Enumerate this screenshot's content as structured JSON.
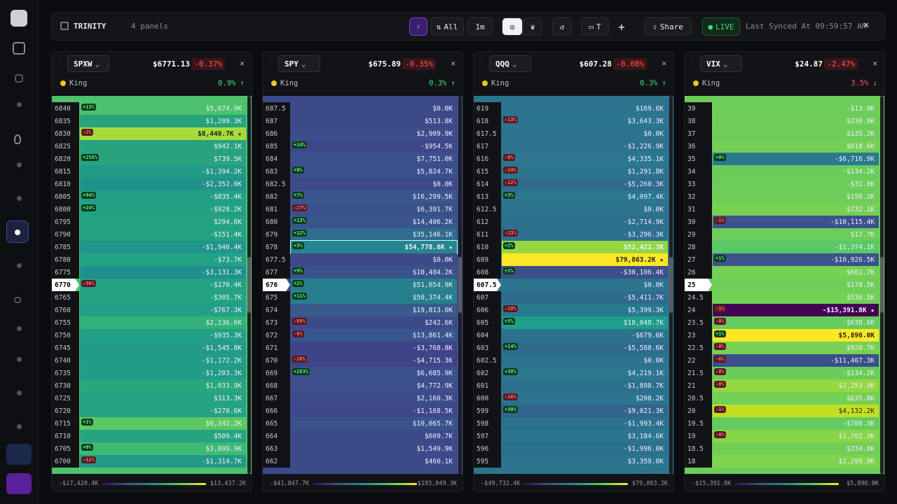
{
  "header": {
    "brand": "TRINITY",
    "panel_count": "4 panels",
    "filter": "All",
    "interval": "1m",
    "t_button": "T",
    "share": "Share",
    "live": "LIVE",
    "last_synced": "Last Synced At 09:59:57 AM"
  },
  "panels": [
    {
      "ticker": "SPXW",
      "price": "$6771.13",
      "change": "-0.37%",
      "king": "King",
      "king_change": "0.9% ↑",
      "king_color": "#3ddc84",
      "footer_min": "-$17,420.4K",
      "footer_max": "$13,437.2K",
      "rows": [
        {
          "strike": "6840",
          "badge": "+13%",
          "value": "$5,674.9K",
          "color": "#4cc26c"
        },
        {
          "strike": "6835",
          "value": "$1,209.3K",
          "color": "#27a37e"
        },
        {
          "strike": "6830",
          "badge": "-2%",
          "value": "$8,440.7K ★",
          "color": "#a6dc3a",
          "highlight": true
        },
        {
          "strike": "6825",
          "value": "$942.1K",
          "color": "#27a37e"
        },
        {
          "strike": "6820",
          "badge": "+258%",
          "value": "$739.5K",
          "color": "#27a37e"
        },
        {
          "strike": "6815",
          "value": "-$1,394.2K",
          "color": "#219a86"
        },
        {
          "strike": "6810",
          "value": "-$2,352.0K",
          "color": "#20928b"
        },
        {
          "strike": "6805",
          "badge": "+94%",
          "value": "-$835.4K",
          "color": "#22a085"
        },
        {
          "strike": "6800",
          "badge": "+24%",
          "value": "-$928.2K",
          "color": "#22a085"
        },
        {
          "strike": "6795",
          "value": "$294.6K",
          "color": "#25a381"
        },
        {
          "strike": "6790",
          "value": "-$151.4K",
          "color": "#23a283"
        },
        {
          "strike": "6785",
          "value": "-$1,940.4K",
          "color": "#20968a"
        },
        {
          "strike": "6780",
          "value": "-$73.7K",
          "color": "#23a283"
        },
        {
          "strike": "6775",
          "value": "-$3,131.3K",
          "color": "#20908c"
        },
        {
          "strike": "6770",
          "badge": "-56%",
          "value": "-$170.4K",
          "color": "#23a283",
          "current": true
        },
        {
          "strike": "6765",
          "value": "-$305.7K",
          "color": "#23a283"
        },
        {
          "strike": "6760",
          "value": "-$767.3K",
          "color": "#22a085"
        },
        {
          "strike": "6755",
          "value": "$2,136.6K",
          "color": "#32b179"
        },
        {
          "strike": "6750",
          "value": "-$935.3K",
          "color": "#22a085"
        },
        {
          "strike": "6745",
          "value": "-$1,545.8K",
          "color": "#219a86"
        },
        {
          "strike": "6740",
          "value": "-$1,172.2K",
          "color": "#219c86"
        },
        {
          "strike": "6735",
          "value": "-$1,203.3K",
          "color": "#219c86"
        },
        {
          "strike": "6730",
          "value": "$1,033.9K",
          "color": "#28a77d"
        },
        {
          "strike": "6725",
          "value": "$313.3K",
          "color": "#25a381"
        },
        {
          "strike": "6720",
          "value": "-$270.6K",
          "color": "#23a283"
        },
        {
          "strike": "6715",
          "badge": "+1%",
          "value": "$6,342.2K",
          "color": "#5cc863"
        },
        {
          "strike": "6710",
          "value": "$509.4K",
          "color": "#26a480"
        },
        {
          "strike": "6705",
          "badge": "+0%",
          "value": "$3,899.9K",
          "color": "#3dba74"
        },
        {
          "strike": "6700",
          "badge": "-12%",
          "value": "-$1,314.7K",
          "color": "#219a86"
        }
      ]
    },
    {
      "ticker": "SPY",
      "price": "$675.89",
      "change": "-0.35%",
      "king": "King",
      "king_change": "0.3% ↑",
      "king_color": "#3ddc84",
      "footer_min": "-$41,847.7K",
      "footer_max": "$193,049.3K",
      "rows": [
        {
          "strike": "687.5",
          "value": "$0.0K",
          "color": "#3d4a8a"
        },
        {
          "strike": "687",
          "value": "$513.8K",
          "color": "#3d4a8a"
        },
        {
          "strike": "686",
          "value": "$2,909.9K",
          "color": "#3c4d8b"
        },
        {
          "strike": "685",
          "badge": "+14%",
          "value": "-$954.5K",
          "color": "#3e4789"
        },
        {
          "strike": "684",
          "value": "$7,751.0K",
          "color": "#3b518b"
        },
        {
          "strike": "683",
          "badge": "+0%",
          "value": "$5,824.7K",
          "color": "#3b508b"
        },
        {
          "strike": "682.5",
          "value": "$0.0K",
          "color": "#3d4a8a"
        },
        {
          "strike": "682",
          "badge": "+7%",
          "value": "$16,299.5K",
          "color": "#39578c"
        },
        {
          "strike": "681",
          "badge": "-27%",
          "value": "$6,391.7K",
          "color": "#3b508b"
        },
        {
          "strike": "680",
          "badge": "+13%",
          "value": "$14,406.2K",
          "color": "#39568c"
        },
        {
          "strike": "679",
          "badge": "+12%",
          "value": "$35,146.1K",
          "color": "#2f6c8e"
        },
        {
          "strike": "678",
          "badge": "+3%",
          "value": "$54,778.6K ★",
          "color": "#25848e",
          "highlight": true,
          "outline": true
        },
        {
          "strike": "677.5",
          "value": "$0.0K",
          "color": "#3d4a8a"
        },
        {
          "strike": "677",
          "badge": "+9%",
          "value": "$10,404.2K",
          "color": "#3a538b"
        },
        {
          "strike": "676",
          "badge": "+2%",
          "value": "$51,054.9K",
          "color": "#27808e",
          "current": true
        },
        {
          "strike": "675",
          "badge": "+11%",
          "value": "$50,374.4K",
          "color": "#277f8e"
        },
        {
          "strike": "674",
          "value": "$19,813.0K",
          "color": "#385b8c"
        },
        {
          "strike": "673",
          "badge": "-89%",
          "value": "$242.6K",
          "color": "#3d4a8a"
        },
        {
          "strike": "672",
          "badge": "-6%",
          "value": "$13,861.4K",
          "color": "#39568c"
        },
        {
          "strike": "671",
          "value": "-$3,768.8K",
          "color": "#3f4488"
        },
        {
          "strike": "670",
          "badge": "-26%",
          "value": "-$4,715.3K",
          "color": "#3f4387"
        },
        {
          "strike": "669",
          "badge": "+283%",
          "value": "$6,685.9K",
          "color": "#3b508b"
        },
        {
          "strike": "668",
          "value": "$4,772.9K",
          "color": "#3c4e8b"
        },
        {
          "strike": "667",
          "value": "$2,160.3K",
          "color": "#3c4c8a"
        },
        {
          "strike": "666",
          "value": "-$1,168.5K",
          "color": "#3e4789"
        },
        {
          "strike": "665",
          "value": "$10,065.7K",
          "color": "#3a538b"
        },
        {
          "strike": "664",
          "value": "$609.7K",
          "color": "#3d4a8a"
        },
        {
          "strike": "663",
          "value": "$1,549.9K",
          "color": "#3d4b8a"
        },
        {
          "strike": "662",
          "value": "$460.1K",
          "color": "#3d4a8a"
        }
      ]
    },
    {
      "ticker": "QQQ",
      "price": "$607.28",
      "change": "-0.08%",
      "king": "King",
      "king_change": "0.3% ↑",
      "king_color": "#3ddc84",
      "footer_min": "-$49,732.4K",
      "footer_max": "$79,863.2K",
      "rows": [
        {
          "strike": "619",
          "value": "$169.6K",
          "color": "#2c738e"
        },
        {
          "strike": "618",
          "badge": "-13%",
          "value": "$3,643.3K",
          "color": "#2b768e"
        },
        {
          "strike": "617.5",
          "value": "$0.0K",
          "color": "#2c738e"
        },
        {
          "strike": "617",
          "value": "-$1,226.9K",
          "color": "#2d718e"
        },
        {
          "strike": "616",
          "badge": "-8%",
          "value": "$4,335.1K",
          "color": "#2a778e"
        },
        {
          "strike": "615",
          "badge": "-24%",
          "value": "$1,291.8K",
          "color": "#2c748e"
        },
        {
          "strike": "614",
          "badge": "-12%",
          "value": "-$5,260.3K",
          "color": "#2e6b8e"
        },
        {
          "strike": "613",
          "badge": "+3%",
          "value": "$4,097.4K",
          "color": "#2a778e"
        },
        {
          "strike": "612.5",
          "value": "$0.0K",
          "color": "#2c738e"
        },
        {
          "strike": "612",
          "value": "-$2,714.9K",
          "color": "#2d6f8e"
        },
        {
          "strike": "611",
          "badge": "-33%",
          "value": "-$3,296.3K",
          "color": "#2e6e8e"
        },
        {
          "strike": "610",
          "badge": "+2%",
          "value": "$52,422.3K",
          "color": "#94d741",
          "highlight": true
        },
        {
          "strike": "609",
          "value": "$79,863.2K ★",
          "color": "#fde725",
          "highlight": true
        },
        {
          "strike": "608",
          "badge": "+1%",
          "value": "-$30,106.4K",
          "color": "#3c4f8a"
        },
        {
          "strike": "607.5",
          "value": "$0.0K",
          "color": "#2c738e",
          "current": true
        },
        {
          "strike": "607",
          "value": "-$5,411.7K",
          "color": "#2e6b8e"
        },
        {
          "strike": "606",
          "badge": "-28%",
          "value": "$5,399.3K",
          "color": "#29798e"
        },
        {
          "strike": "605",
          "badge": "+5%",
          "value": "$18,048.7K",
          "color": "#1f9e89"
        },
        {
          "strike": "604",
          "value": "-$679.6K",
          "color": "#2c728e"
        },
        {
          "strike": "603",
          "badge": "+14%",
          "value": "-$5,588.6K",
          "color": "#2e6b8e"
        },
        {
          "strike": "602.5",
          "value": "$0.0K",
          "color": "#2c738e"
        },
        {
          "strike": "602",
          "badge": "+38%",
          "value": "$4,219.1K",
          "color": "#2a778e"
        },
        {
          "strike": "601",
          "value": "-$1,898.7K",
          "color": "#2d708e"
        },
        {
          "strike": "600",
          "badge": "-16%",
          "value": "$208.2K",
          "color": "#2c738e"
        },
        {
          "strike": "599",
          "badge": "+30%",
          "value": "-$9,021.3K",
          "color": "#31658d"
        },
        {
          "strike": "598",
          "value": "-$1,993.4K",
          "color": "#2d708e"
        },
        {
          "strike": "597",
          "value": "$3,184.6K",
          "color": "#2b768e"
        },
        {
          "strike": "596",
          "value": "-$1,996.0K",
          "color": "#2d708e"
        },
        {
          "strike": "595",
          "value": "$3,359.0K",
          "color": "#2b768e"
        }
      ]
    },
    {
      "ticker": "VIX",
      "price": "$24.87",
      "change": "-2.47%",
      "king": "King",
      "king_change": "3.5% ↓",
      "king_color": "#ff5a5a",
      "footer_min": "-$15,391.8K",
      "footer_max": "$5,896.0K",
      "rows": [
        {
          "strike": "39",
          "value": "-$13.0K",
          "color": "#6ccd5a"
        },
        {
          "strike": "38",
          "value": "$230.9K",
          "color": "#6fce58"
        },
        {
          "strike": "37",
          "value": "$135.2K",
          "color": "#6ecd59"
        },
        {
          "strike": "36",
          "value": "$618.6K",
          "color": "#74d055"
        },
        {
          "strike": "35",
          "badge": "+0%",
          "value": "-$6,716.9K",
          "color": "#2a798e"
        },
        {
          "strike": "34",
          "value": "-$134.2K",
          "color": "#6bcc5a"
        },
        {
          "strike": "33",
          "value": "-$31.0K",
          "color": "#6ccd5a"
        },
        {
          "strike": "32",
          "value": "$150.2K",
          "color": "#6ecd59"
        },
        {
          "strike": "31",
          "value": "$732.1K",
          "color": "#76d054"
        },
        {
          "strike": "30",
          "badge": "-1%",
          "value": "-$10,115.4K",
          "color": "#3b528b"
        },
        {
          "strike": "29",
          "value": "$12.7K",
          "color": "#6ccd5a"
        },
        {
          "strike": "28",
          "value": "-$1,374.1K",
          "color": "#5ac864"
        },
        {
          "strike": "27",
          "badge": "+1%",
          "value": "-$10,926.5K",
          "color": "#3b528b"
        },
        {
          "strike": "26",
          "value": "$661.7K",
          "color": "#75d054"
        },
        {
          "strike": "25",
          "value": "$178.5K",
          "color": "#6ece58",
          "current": true
        },
        {
          "strike": "24.5",
          "value": "$536.5K",
          "color": "#73d056"
        },
        {
          "strike": "24",
          "badge": "-1%",
          "value": "-$15,391.8K ★",
          "color": "#440154",
          "highlight": true
        },
        {
          "strike": "23.5",
          "badge": "-0%",
          "value": "-$638.6K",
          "color": "#65cb5e"
        },
        {
          "strike": "23",
          "badge": "+1%",
          "value": "$5,896.0K",
          "color": "#fde725",
          "highlight": true
        },
        {
          "strike": "22.5",
          "badge": "-0%",
          "value": "$920.7K",
          "color": "#78d152"
        },
        {
          "strike": "22",
          "badge": "-6%",
          "value": "-$11,407.3K",
          "color": "#3a4f8a"
        },
        {
          "strike": "21.5",
          "badge": "-0%",
          "value": "-$134.2K",
          "color": "#6bcc5a"
        },
        {
          "strike": "21",
          "badge": "-0%",
          "value": "$2,253.9K",
          "color": "#93d741"
        },
        {
          "strike": "20.5",
          "value": "$635.8K",
          "color": "#74d055"
        },
        {
          "strike": "20",
          "badge": "-1%",
          "value": "$4,132.2K",
          "color": "#c2df23"
        },
        {
          "strike": "19.5",
          "value": "-$700.3K",
          "color": "#64cb5f"
        },
        {
          "strike": "19",
          "badge": "-0%",
          "value": "$1,762.3K",
          "color": "#88d548"
        },
        {
          "strike": "18.5",
          "value": "$334.8K",
          "color": "#70ce57"
        },
        {
          "strike": "18",
          "value": "$1,299.9K",
          "color": "#80d34d"
        }
      ]
    }
  ]
}
